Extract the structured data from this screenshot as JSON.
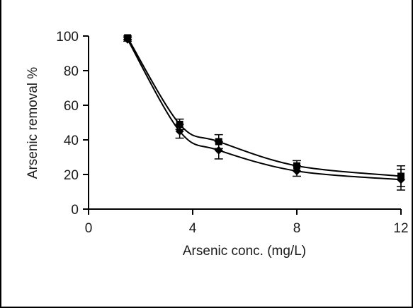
{
  "chart_data": {
    "type": "line",
    "title": "",
    "xlabel": "Arsenic conc. (mg/L)",
    "ylabel": "Arsenic removal %",
    "xlim": [
      0,
      12
    ],
    "ylim": [
      0,
      100
    ],
    "xticks": [
      0,
      4,
      8,
      12
    ],
    "yticks": [
      0,
      20,
      40,
      60,
      80,
      100
    ],
    "x_tick_labels": [
      "0",
      "4",
      "8",
      "12"
    ],
    "y_tick_labels": [
      "0",
      "20",
      "40",
      "60",
      "80",
      "100"
    ],
    "grid": false,
    "legend": "none",
    "series": [
      {
        "marker": "square",
        "x": [
          1.5,
          3.5,
          5.0,
          8.0,
          12.0
        ],
        "y": [
          99,
          49,
          39,
          25,
          19
        ],
        "error": [
          1,
          3,
          4,
          3,
          6
        ],
        "color": "#000000"
      },
      {
        "marker": "diamond",
        "x": [
          1.5,
          3.5,
          5.0,
          8.0,
          12.0
        ],
        "y": [
          98,
          45,
          34,
          22,
          17
        ],
        "error": [
          1,
          4,
          5,
          3,
          6
        ],
        "color": "#000000"
      }
    ]
  }
}
